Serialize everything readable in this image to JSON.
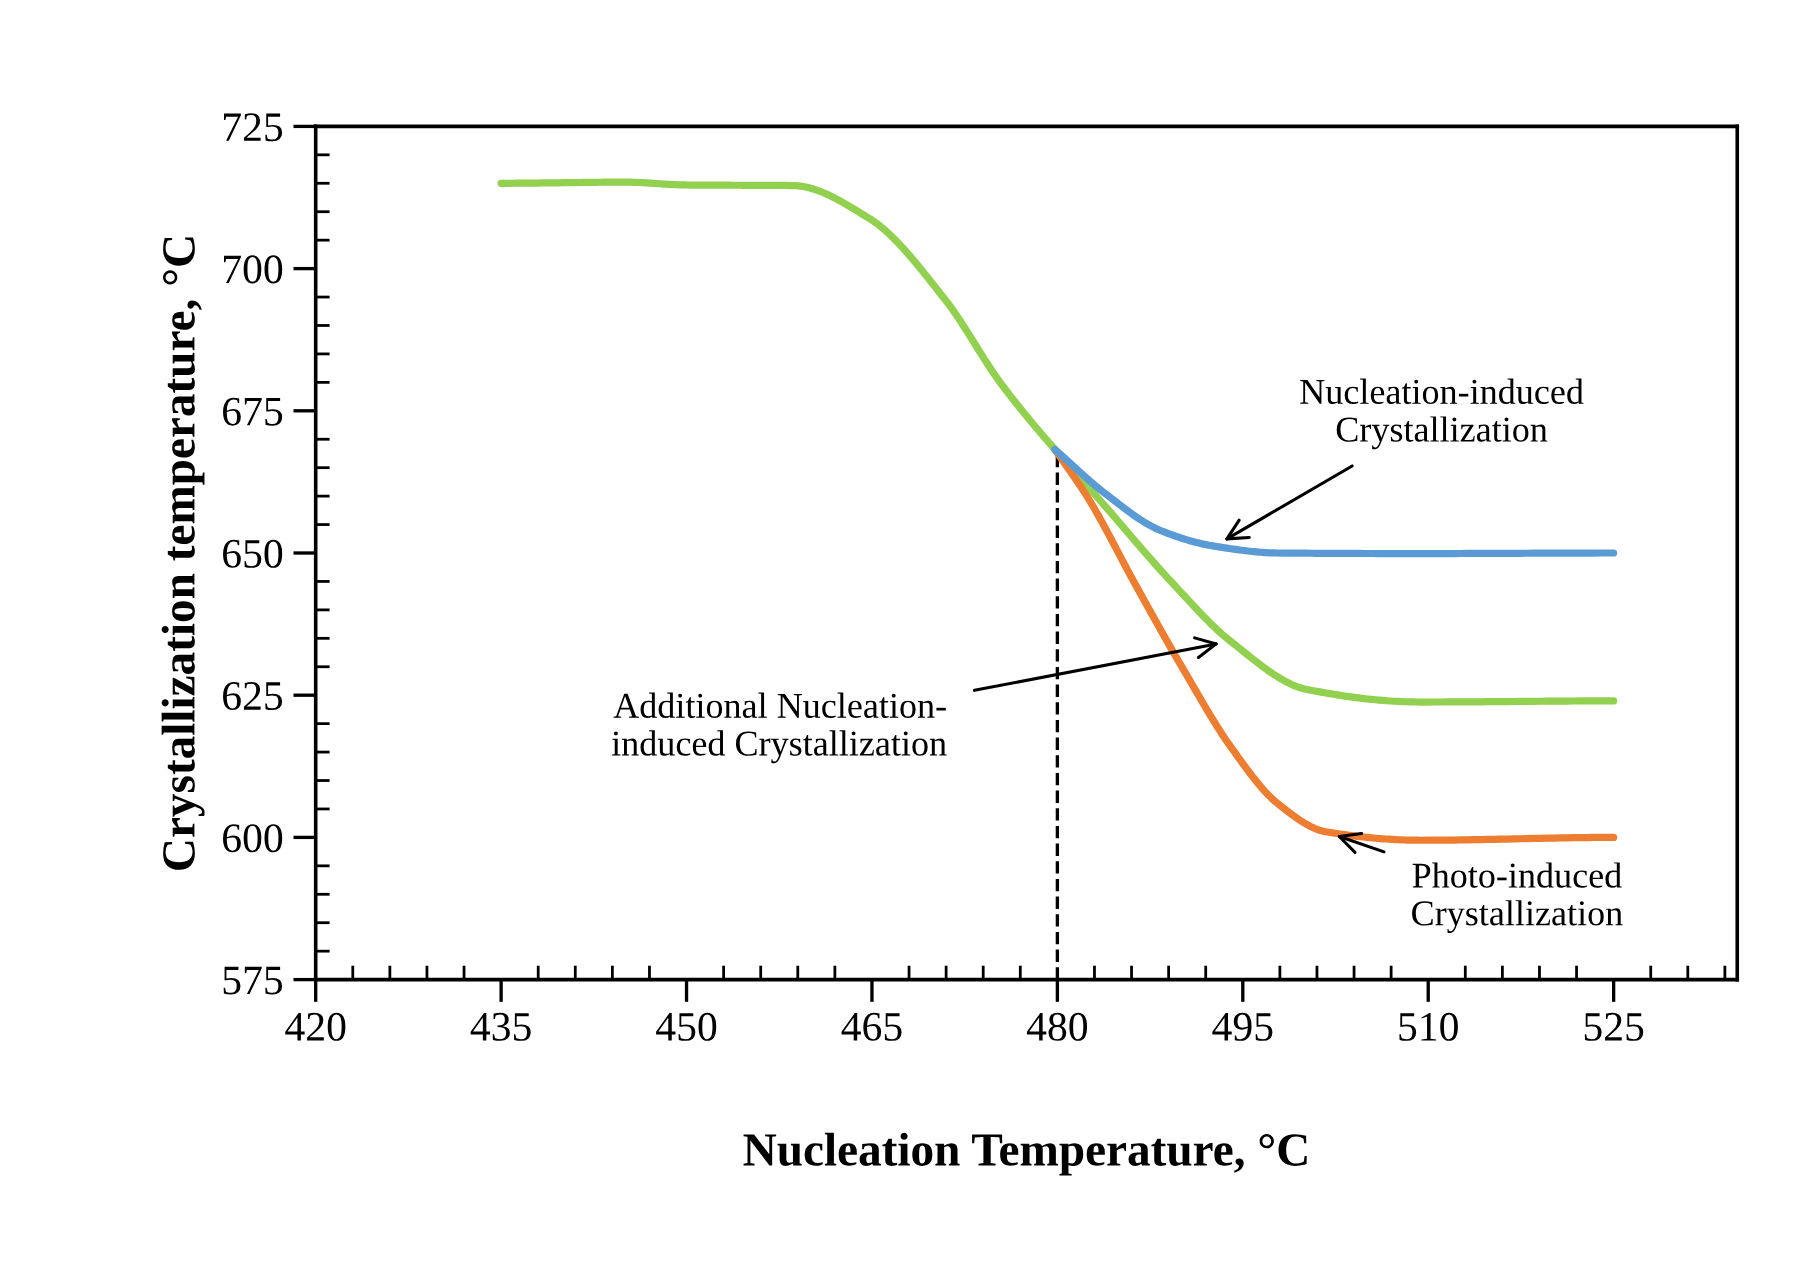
{
  "chart_data": {
    "type": "line",
    "xlabel": "Nucleation Temperature, °C",
    "ylabel": "Crystallization temperature, °C",
    "xlim": [
      420,
      535
    ],
    "xticks": [
      420,
      435,
      450,
      465,
      480,
      495,
      510,
      525
    ],
    "ylim": [
      575,
      725
    ],
    "yticks": [
      575,
      600,
      625,
      650,
      675,
      700,
      725
    ],
    "grid": false,
    "marker": "none",
    "line_style": "solid",
    "series": [
      {
        "color": "#92d050",
        "x": [
          435,
          445,
          450,
          458.6,
          464.8,
          470.9,
          475.5,
          484,
          489.4,
          494,
          500.2,
          509.4,
          525
        ],
        "values": [
          715,
          715.2,
          714.7,
          714.6,
          708.8,
          694.6,
          679.6,
          657.9,
          644.5,
          634.5,
          626,
          623.8,
          624
        ]
      },
      {
        "color": "#ed7d31",
        "x": [
          479.8,
          482.5,
          486.3,
          490.2,
          494,
          497.8,
          501.7,
          509.4,
          525
        ],
        "values": [
          668.2,
          659.6,
          644.5,
          629.5,
          616,
          606,
          601,
          599.5,
          600
        ]
      },
      {
        "color": "#5b9bd5",
        "x": [
          479.8,
          483.9,
          488.3,
          492.7,
          497.8,
          509.4,
          525
        ],
        "values": [
          668.2,
          660.4,
          654,
          651.2,
          650,
          649.9,
          650
        ]
      }
    ],
    "ref_lines": [
      {
        "axis": "x",
        "value": 480,
        "line_style": "dashed",
        "color": "#000000"
      }
    ],
    "annotations": [
      {
        "text": "Nucleation-induced\nCrystallization",
        "x": 492.7,
        "y": 651.2
      },
      {
        "text": "Additional Nucleation-\ninduced Crystallization",
        "x": 494,
        "y": 634.5
      },
      {
        "text": "Photo-induced\nCrystallization",
        "x": 501.7,
        "y": 601
      }
    ]
  }
}
